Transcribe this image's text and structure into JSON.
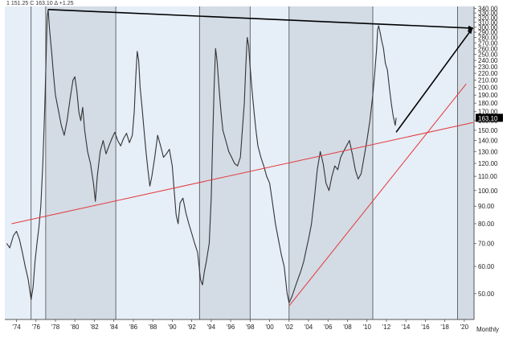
{
  "header": {
    "info_text": "1 151.25 C 163.10 Δ +1.25"
  },
  "colors": {
    "background": "#e6eef8",
    "shade": "#d3dbe5",
    "line": "#333333",
    "trend_black": "#000000",
    "trend_red": "#e23a3a",
    "last_price_bg": "#000000",
    "last_price_fg": "#ffffff"
  },
  "chart_data": {
    "type": "line",
    "title": "",
    "xlabel": "",
    "ylabel": "",
    "frequency_label": "Monthly",
    "xlim": [
      1972.8,
      2021.0
    ],
    "ylim": [
      42,
      345
    ],
    "y_scale": "log",
    "y_ticks": [
      50,
      60,
      70,
      80,
      90,
      100,
      110,
      120,
      130,
      140,
      150,
      160,
      170,
      180,
      190,
      200,
      210,
      220,
      230,
      240,
      250,
      260,
      270,
      280,
      290,
      300,
      310,
      320,
      330,
      340
    ],
    "y_tick_labels": [
      "50.00",
      "60.00",
      "70.00",
      "80.00",
      "90.00",
      "100.00",
      "110.00",
      "120.00",
      "130.00",
      "140.00",
      "150.00",
      "160.00",
      "170.00",
      "180.00",
      "190.00",
      "200.00",
      "210.00",
      "220.00",
      "230.00",
      "240.00",
      "250.00",
      "260.00",
      "270.00",
      "280.00",
      "290.00",
      "300.00",
      "310.00",
      "320.00",
      "330.00",
      "340.00"
    ],
    "x_ticks": [
      1974,
      1976,
      1978,
      1980,
      1982,
      1984,
      1986,
      1988,
      1990,
      1992,
      1994,
      1996,
      1998,
      2000,
      2002,
      2004,
      2006,
      2008,
      2010,
      2012,
      2014,
      2016,
      2018,
      2020
    ],
    "x_tick_labels": [
      "'74",
      "'76",
      "'78",
      "'80",
      "'82",
      "'84",
      "'86",
      "'88",
      "'90",
      "'92",
      "'94",
      "'96",
      "'98",
      "'00",
      "'02",
      "'04",
      "'06",
      "'08",
      "'10",
      "'12",
      "'14",
      "'16",
      "'18",
      "'20"
    ],
    "vertical_lines": [
      1975.5,
      1977.0,
      1984.2,
      1992.8,
      1998.0,
      2002.0,
      2010.6,
      2019.3
    ],
    "shaded_ranges": [
      [
        1977.0,
        1984.2
      ],
      [
        1992.8,
        1998.0
      ],
      [
        2002.0,
        2010.6
      ],
      [
        2019.3,
        2021.0
      ]
    ],
    "last_price": 163.1,
    "last_price_label": "163.10",
    "series": [
      {
        "points": [
          [
            1973.0,
            70
          ],
          [
            1973.3,
            68
          ],
          [
            1973.7,
            74
          ],
          [
            1974.0,
            76
          ],
          [
            1974.3,
            72
          ],
          [
            1974.6,
            66
          ],
          [
            1974.9,
            60
          ],
          [
            1975.2,
            55
          ],
          [
            1975.5,
            48
          ],
          [
            1975.7,
            52
          ],
          [
            1975.9,
            62
          ],
          [
            1976.1,
            70
          ],
          [
            1976.3,
            78
          ],
          [
            1976.5,
            90
          ],
          [
            1976.7,
            120
          ],
          [
            1976.9,
            175
          ],
          [
            1977.05,
            250
          ],
          [
            1977.15,
            320
          ],
          [
            1977.25,
            338
          ],
          [
            1977.4,
            295
          ],
          [
            1977.6,
            255
          ],
          [
            1977.8,
            218
          ],
          [
            1978.0,
            190
          ],
          [
            1978.3,
            172
          ],
          [
            1978.6,
            155
          ],
          [
            1978.9,
            145
          ],
          [
            1979.2,
            160
          ],
          [
            1979.5,
            185
          ],
          [
            1979.8,
            210
          ],
          [
            1980.0,
            215
          ],
          [
            1980.2,
            195
          ],
          [
            1980.4,
            170
          ],
          [
            1980.6,
            160
          ],
          [
            1980.8,
            175
          ],
          [
            1981.0,
            150
          ],
          [
            1981.3,
            130
          ],
          [
            1981.6,
            120
          ],
          [
            1981.9,
            105
          ],
          [
            1982.1,
            93
          ],
          [
            1982.3,
            110
          ],
          [
            1982.6,
            130
          ],
          [
            1982.9,
            140
          ],
          [
            1983.2,
            128
          ],
          [
            1983.5,
            135
          ],
          [
            1983.8,
            142
          ],
          [
            1984.1,
            148
          ],
          [
            1984.4,
            140
          ],
          [
            1984.7,
            135
          ],
          [
            1985.0,
            142
          ],
          [
            1985.3,
            147
          ],
          [
            1985.6,
            138
          ],
          [
            1985.9,
            145
          ],
          [
            1986.1,
            170
          ],
          [
            1986.25,
            215
          ],
          [
            1986.4,
            255
          ],
          [
            1986.55,
            240
          ],
          [
            1986.7,
            200
          ],
          [
            1986.9,
            175
          ],
          [
            1987.1,
            150
          ],
          [
            1987.3,
            130
          ],
          [
            1987.5,
            115
          ],
          [
            1987.7,
            103
          ],
          [
            1987.9,
            110
          ],
          [
            1988.2,
            125
          ],
          [
            1988.5,
            145
          ],
          [
            1988.8,
            135
          ],
          [
            1989.1,
            125
          ],
          [
            1989.4,
            128
          ],
          [
            1989.7,
            132
          ],
          [
            1990.0,
            118
          ],
          [
            1990.2,
            100
          ],
          [
            1990.4,
            85
          ],
          [
            1990.6,
            80
          ],
          [
            1990.8,
            92
          ],
          [
            1991.1,
            95
          ],
          [
            1991.4,
            86
          ],
          [
            1991.7,
            80
          ],
          [
            1992.0,
            75
          ],
          [
            1992.3,
            70
          ],
          [
            1992.6,
            66
          ],
          [
            1992.9,
            55
          ],
          [
            1993.1,
            53
          ],
          [
            1993.3,
            58
          ],
          [
            1993.5,
            62
          ],
          [
            1993.8,
            70
          ],
          [
            1994.0,
            95
          ],
          [
            1994.15,
            140
          ],
          [
            1994.3,
            200
          ],
          [
            1994.45,
            260
          ],
          [
            1994.6,
            240
          ],
          [
            1994.8,
            200
          ],
          [
            1995.0,
            170
          ],
          [
            1995.2,
            150
          ],
          [
            1995.5,
            140
          ],
          [
            1995.8,
            130
          ],
          [
            1996.1,
            125
          ],
          [
            1996.4,
            120
          ],
          [
            1996.7,
            118
          ],
          [
            1997.0,
            125
          ],
          [
            1997.2,
            150
          ],
          [
            1997.4,
            180
          ],
          [
            1997.55,
            230
          ],
          [
            1997.7,
            280
          ],
          [
            1997.85,
            265
          ],
          [
            1998.0,
            230
          ],
          [
            1998.2,
            195
          ],
          [
            1998.4,
            170
          ],
          [
            1998.6,
            150
          ],
          [
            1998.8,
            135
          ],
          [
            1999.1,
            125
          ],
          [
            1999.4,
            118
          ],
          [
            1999.7,
            110
          ],
          [
            2000.0,
            105
          ],
          [
            2000.3,
            92
          ],
          [
            2000.6,
            80
          ],
          [
            2000.9,
            72
          ],
          [
            2001.2,
            65
          ],
          [
            2001.5,
            60
          ],
          [
            2001.8,
            50
          ],
          [
            2002.0,
            47
          ],
          [
            2002.3,
            49
          ],
          [
            2002.6,
            52
          ],
          [
            2002.9,
            55
          ],
          [
            2003.2,
            58
          ],
          [
            2003.5,
            62
          ],
          [
            2003.8,
            68
          ],
          [
            2004.0,
            72
          ],
          [
            2004.3,
            80
          ],
          [
            2004.6,
            95
          ],
          [
            2004.9,
            115
          ],
          [
            2005.2,
            130
          ],
          [
            2005.5,
            120
          ],
          [
            2005.8,
            105
          ],
          [
            2006.1,
            100
          ],
          [
            2006.4,
            110
          ],
          [
            2006.7,
            118
          ],
          [
            2007.0,
            115
          ],
          [
            2007.3,
            125
          ],
          [
            2007.6,
            130
          ],
          [
            2007.9,
            135
          ],
          [
            2008.2,
            140
          ],
          [
            2008.5,
            128
          ],
          [
            2008.8,
            115
          ],
          [
            2009.1,
            108
          ],
          [
            2009.4,
            112
          ],
          [
            2009.7,
            125
          ],
          [
            2010.0,
            140
          ],
          [
            2010.3,
            160
          ],
          [
            2010.6,
            190
          ],
          [
            2010.8,
            220
          ],
          [
            2011.0,
            260
          ],
          [
            2011.1,
            295
          ],
          [
            2011.2,
            303
          ],
          [
            2011.35,
            290
          ],
          [
            2011.5,
            275
          ],
          [
            2011.7,
            260
          ],
          [
            2011.9,
            235
          ],
          [
            2012.1,
            225
          ],
          [
            2012.3,
            200
          ],
          [
            2012.5,
            180
          ],
          [
            2012.7,
            165
          ],
          [
            2012.9,
            155
          ],
          [
            2013.0,
            163.1
          ]
        ]
      }
    ],
    "trendlines": [
      {
        "color": "black",
        "points": [
          [
            1977.25,
            338
          ],
          [
            2020.9,
            298
          ]
        ]
      },
      {
        "color": "black",
        "points": [
          [
            2013.0,
            148
          ],
          [
            2020.8,
            297
          ]
        ]
      },
      {
        "color": "red",
        "points": [
          [
            1973.5,
            80
          ],
          [
            2020.9,
            158
          ]
        ]
      },
      {
        "color": "red",
        "points": [
          [
            2002.0,
            46
          ],
          [
            2020.2,
            205
          ]
        ]
      }
    ]
  }
}
